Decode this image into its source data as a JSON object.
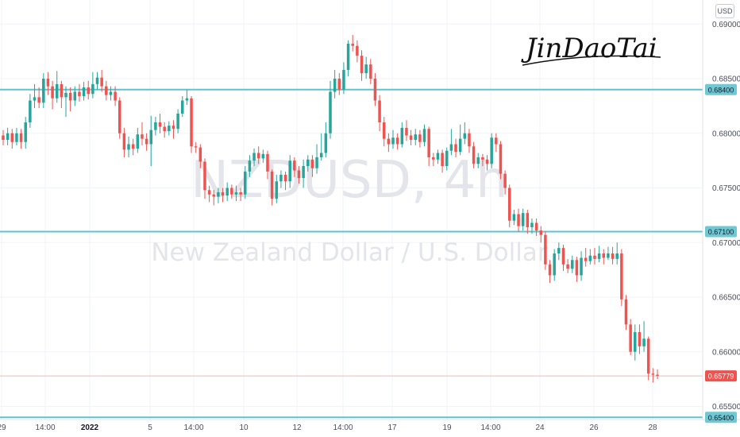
{
  "currency": "USD",
  "watermark": {
    "symbol": "NZDUSD, 4h",
    "description": "New Zealand Dollar / U.S. Dollar"
  },
  "signature": "JinDaoTai",
  "chart_data": {
    "type": "candlestick",
    "ylim": [
      0.6538,
      0.6922
    ],
    "y_ticks": [
      "0.69000",
      "0.68500",
      "0.68000",
      "0.67500",
      "0.67000",
      "0.66500",
      "0.66000",
      "0.65500"
    ],
    "x_ticks": [
      {
        "label": "29",
        "bold": false
      },
      {
        "label": "14:00",
        "bold": false
      },
      {
        "label": "2022",
        "bold": true
      },
      {
        "label": "5",
        "bold": false
      },
      {
        "label": "14:00",
        "bold": false
      },
      {
        "label": "10",
        "bold": false
      },
      {
        "label": "12",
        "bold": false
      },
      {
        "label": "14:00",
        "bold": false
      },
      {
        "label": "17",
        "bold": false
      },
      {
        "label": "19",
        "bold": false
      },
      {
        "label": "14:00",
        "bold": false
      },
      {
        "label": "24",
        "bold": false
      },
      {
        "label": "26",
        "bold": false
      },
      {
        "label": "28",
        "bold": false
      }
    ],
    "horizontal_levels": [
      {
        "value": 0.684,
        "label": "0.68400"
      },
      {
        "value": 0.671,
        "label": "0.67100"
      },
      {
        "value": 0.654,
        "label": "0.65400"
      }
    ],
    "last_price": {
      "value": 0.65779,
      "label": "0.65779"
    },
    "colors": {
      "up": "#26a69a",
      "down": "#ef5350",
      "level": "#5fc3d0",
      "last_price_line": "#f2b8b8"
    },
    "candles": [
      [
        0.6798,
        0.6794,
        0.6803,
        0.6789
      ],
      [
        0.6794,
        0.68,
        0.6805,
        0.6789
      ],
      [
        0.68,
        0.6792,
        0.6804,
        0.6786
      ],
      [
        0.6792,
        0.68,
        0.6805,
        0.6789
      ],
      [
        0.68,
        0.6792,
        0.6804,
        0.6786
      ],
      [
        0.6792,
        0.681,
        0.6815,
        0.6786
      ],
      [
        0.681,
        0.683,
        0.6836,
        0.6805
      ],
      [
        0.683,
        0.6833,
        0.6845,
        0.6823
      ],
      [
        0.6833,
        0.6828,
        0.6842,
        0.6823
      ],
      [
        0.6828,
        0.685,
        0.6855,
        0.6823
      ],
      [
        0.685,
        0.6843,
        0.6856,
        0.6835
      ],
      [
        0.6843,
        0.6832,
        0.6848,
        0.6822
      ],
      [
        0.6832,
        0.6845,
        0.6857,
        0.6828
      ],
      [
        0.6845,
        0.6833,
        0.6848,
        0.6823
      ],
      [
        0.6833,
        0.6837,
        0.6843,
        0.6815
      ],
      [
        0.6837,
        0.683,
        0.6842,
        0.682
      ],
      [
        0.683,
        0.6838,
        0.6843,
        0.6825
      ],
      [
        0.6838,
        0.6834,
        0.6845,
        0.6829
      ],
      [
        0.6834,
        0.6842,
        0.6847,
        0.683
      ],
      [
        0.6842,
        0.6836,
        0.6848,
        0.6831
      ],
      [
        0.6836,
        0.6845,
        0.6856,
        0.6832
      ],
      [
        0.6845,
        0.6851,
        0.6856,
        0.684
      ],
      [
        0.6851,
        0.6843,
        0.6858,
        0.6838
      ],
      [
        0.6843,
        0.6835,
        0.6848,
        0.683
      ],
      [
        0.6835,
        0.6838,
        0.6843,
        0.683
      ],
      [
        0.6838,
        0.683,
        0.6843,
        0.6825
      ],
      [
        0.683,
        0.68,
        0.6833,
        0.6795
      ],
      [
        0.68,
        0.6785,
        0.6805,
        0.6778
      ],
      [
        0.6785,
        0.679,
        0.6797,
        0.6778
      ],
      [
        0.679,
        0.6786,
        0.6795,
        0.678
      ],
      [
        0.6786,
        0.6799,
        0.6805,
        0.6782
      ],
      [
        0.6799,
        0.6795,
        0.681,
        0.6789
      ],
      [
        0.6795,
        0.679,
        0.68,
        0.6784
      ],
      [
        0.679,
        0.6803,
        0.6816,
        0.677
      ],
      [
        0.6803,
        0.681,
        0.6815,
        0.6798
      ],
      [
        0.681,
        0.6806,
        0.6818,
        0.68
      ],
      [
        0.6806,
        0.6802,
        0.681,
        0.6796
      ],
      [
        0.6802,
        0.6807,
        0.6811,
        0.6798
      ],
      [
        0.6807,
        0.6804,
        0.6812,
        0.6795
      ],
      [
        0.6804,
        0.6818,
        0.6822,
        0.68
      ],
      [
        0.6818,
        0.683,
        0.6834,
        0.6815
      ],
      [
        0.683,
        0.6832,
        0.684,
        0.6826
      ],
      [
        0.6832,
        0.6788,
        0.6834,
        0.6782
      ],
      [
        0.6788,
        0.6787,
        0.6792,
        0.6782
      ],
      [
        0.6787,
        0.6774,
        0.679,
        0.6768
      ],
      [
        0.6774,
        0.6748,
        0.6777,
        0.674
      ],
      [
        0.6748,
        0.6744,
        0.6752,
        0.6737
      ],
      [
        0.6744,
        0.6742,
        0.6748,
        0.6734
      ],
      [
        0.6742,
        0.6746,
        0.675,
        0.6736
      ],
      [
        0.6746,
        0.6743,
        0.675,
        0.6737
      ],
      [
        0.6743,
        0.675,
        0.6755,
        0.6738
      ],
      [
        0.675,
        0.6744,
        0.6753,
        0.674
      ],
      [
        0.6744,
        0.6746,
        0.6752,
        0.6738
      ],
      [
        0.6746,
        0.6744,
        0.675,
        0.6738
      ],
      [
        0.6744,
        0.6765,
        0.677,
        0.674
      ],
      [
        0.6765,
        0.6775,
        0.678,
        0.676
      ],
      [
        0.6775,
        0.6782,
        0.6786,
        0.677
      ],
      [
        0.6782,
        0.6777,
        0.6788,
        0.6772
      ],
      [
        0.6777,
        0.6781,
        0.6785,
        0.6773
      ],
      [
        0.6781,
        0.6765,
        0.6784,
        0.6758
      ],
      [
        0.6765,
        0.674,
        0.6767,
        0.6734
      ],
      [
        0.674,
        0.6756,
        0.6762,
        0.6736
      ],
      [
        0.6756,
        0.6762,
        0.6766,
        0.675
      ],
      [
        0.6762,
        0.6756,
        0.6765,
        0.6748
      ],
      [
        0.6756,
        0.6775,
        0.678,
        0.675
      ],
      [
        0.6775,
        0.6766,
        0.6778,
        0.676
      ],
      [
        0.6766,
        0.6759,
        0.677,
        0.6754
      ],
      [
        0.6759,
        0.677,
        0.6776,
        0.675
      ],
      [
        0.677,
        0.6776,
        0.678,
        0.6765
      ],
      [
        0.6776,
        0.6768,
        0.678,
        0.676
      ],
      [
        0.6768,
        0.6778,
        0.679,
        0.6763
      ],
      [
        0.6778,
        0.6782,
        0.68,
        0.6775
      ],
      [
        0.6782,
        0.68,
        0.681,
        0.6778
      ],
      [
        0.68,
        0.6838,
        0.6848,
        0.6795
      ],
      [
        0.6838,
        0.685,
        0.6858,
        0.6832
      ],
      [
        0.685,
        0.684,
        0.6855,
        0.6835
      ],
      [
        0.684,
        0.6858,
        0.6865,
        0.6836
      ],
      [
        0.6858,
        0.6882,
        0.6885,
        0.6852
      ],
      [
        0.6882,
        0.688,
        0.689,
        0.6875
      ],
      [
        0.688,
        0.6871,
        0.6885,
        0.6865
      ],
      [
        0.6871,
        0.6855,
        0.6876,
        0.6848
      ],
      [
        0.6855,
        0.6863,
        0.687,
        0.685
      ],
      [
        0.6863,
        0.685,
        0.6868,
        0.6845
      ],
      [
        0.685,
        0.683,
        0.6855,
        0.6825
      ],
      [
        0.683,
        0.681,
        0.6835,
        0.6802
      ],
      [
        0.681,
        0.6795,
        0.6815,
        0.6788
      ],
      [
        0.6795,
        0.679,
        0.68,
        0.6783
      ],
      [
        0.679,
        0.6796,
        0.6803,
        0.6786
      ],
      [
        0.6796,
        0.679,
        0.68,
        0.6785
      ],
      [
        0.679,
        0.6805,
        0.681,
        0.6787
      ],
      [
        0.6805,
        0.6798,
        0.6812,
        0.6793
      ],
      [
        0.6798,
        0.6794,
        0.6803,
        0.6789
      ],
      [
        0.6794,
        0.6799,
        0.6804,
        0.6789
      ],
      [
        0.6799,
        0.6792,
        0.6803,
        0.6787
      ],
      [
        0.6792,
        0.6804,
        0.6808,
        0.6788
      ],
      [
        0.6804,
        0.6778,
        0.6806,
        0.677
      ],
      [
        0.6778,
        0.6776,
        0.6782,
        0.677
      ],
      [
        0.6776,
        0.6782,
        0.6785,
        0.6772
      ],
      [
        0.6782,
        0.677,
        0.6785,
        0.6764
      ],
      [
        0.677,
        0.6784,
        0.6787,
        0.6766
      ],
      [
        0.6784,
        0.679,
        0.6804,
        0.678
      ],
      [
        0.679,
        0.6783,
        0.6795,
        0.6778
      ],
      [
        0.6783,
        0.6795,
        0.6808,
        0.678
      ],
      [
        0.6795,
        0.68,
        0.681,
        0.679
      ],
      [
        0.68,
        0.6788,
        0.6804,
        0.6782
      ],
      [
        0.6788,
        0.6772,
        0.6792,
        0.6768
      ],
      [
        0.6772,
        0.6778,
        0.6782,
        0.6768
      ],
      [
        0.6778,
        0.6776,
        0.6781,
        0.677
      ],
      [
        0.6776,
        0.6772,
        0.678,
        0.6766
      ],
      [
        0.6772,
        0.6796,
        0.68,
        0.6768
      ],
      [
        0.6796,
        0.679,
        0.68,
        0.6783
      ],
      [
        0.679,
        0.6763,
        0.6793,
        0.6758
      ],
      [
        0.6763,
        0.675,
        0.6766,
        0.6744
      ],
      [
        0.675,
        0.672,
        0.6753,
        0.6714
      ],
      [
        0.672,
        0.6726,
        0.673,
        0.6716
      ],
      [
        0.6726,
        0.6715,
        0.6731,
        0.671
      ],
      [
        0.6715,
        0.6727,
        0.6731,
        0.6711
      ],
      [
        0.6727,
        0.6714,
        0.673,
        0.6708
      ],
      [
        0.6714,
        0.6718,
        0.6722,
        0.6708
      ],
      [
        0.6718,
        0.6711,
        0.6722,
        0.6706
      ],
      [
        0.6711,
        0.6707,
        0.6715,
        0.67
      ],
      [
        0.6707,
        0.668,
        0.671,
        0.6675
      ],
      [
        0.668,
        0.667,
        0.6684,
        0.6663
      ],
      [
        0.667,
        0.669,
        0.6694,
        0.6665
      ],
      [
        0.669,
        0.6695,
        0.67,
        0.6684
      ],
      [
        0.6695,
        0.668,
        0.6698,
        0.6674
      ],
      [
        0.668,
        0.6676,
        0.6685,
        0.6672
      ],
      [
        0.6676,
        0.6684,
        0.6688,
        0.6672
      ],
      [
        0.6684,
        0.667,
        0.6687,
        0.6664
      ],
      [
        0.667,
        0.6686,
        0.6692,
        0.6665
      ],
      [
        0.6686,
        0.6683,
        0.6695,
        0.6678
      ],
      [
        0.6683,
        0.6688,
        0.6694,
        0.668
      ],
      [
        0.6688,
        0.6685,
        0.6695,
        0.668
      ],
      [
        0.6685,
        0.669,
        0.6697,
        0.6682
      ],
      [
        0.669,
        0.6686,
        0.6694,
        0.668
      ],
      [
        0.6686,
        0.669,
        0.6696,
        0.6684
      ],
      [
        0.669,
        0.6685,
        0.6696,
        0.668
      ],
      [
        0.6685,
        0.669,
        0.67,
        0.668
      ],
      [
        0.669,
        0.6648,
        0.6694,
        0.6642
      ],
      [
        0.6648,
        0.6625,
        0.6652,
        0.662
      ],
      [
        0.6625,
        0.66,
        0.663,
        0.6597
      ],
      [
        0.66,
        0.6618,
        0.6625,
        0.6592
      ],
      [
        0.6618,
        0.6605,
        0.6625,
        0.6598
      ],
      [
        0.6605,
        0.6612,
        0.6628,
        0.66
      ],
      [
        0.6612,
        0.658,
        0.6614,
        0.6574
      ],
      [
        0.658,
        0.6579,
        0.6585,
        0.6572
      ],
      [
        0.6579,
        0.6578,
        0.6584,
        0.6575
      ]
    ]
  }
}
